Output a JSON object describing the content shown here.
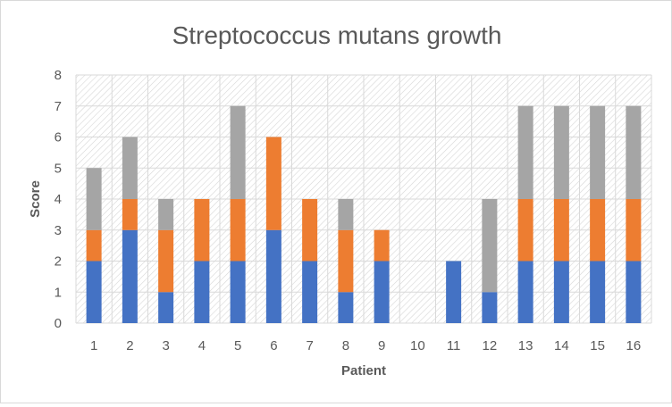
{
  "chart_data": {
    "type": "bar",
    "stacked": true,
    "title": "Streptococcus mutans growth",
    "xlabel": "Patient",
    "ylabel": "Score",
    "ylim": [
      0,
      8
    ],
    "yticks": [
      "0",
      "1",
      "2",
      "3",
      "4",
      "5",
      "6",
      "7",
      "8"
    ],
    "categories": [
      "1",
      "2",
      "3",
      "4",
      "5",
      "6",
      "7",
      "8",
      "9",
      "10",
      "11",
      "12",
      "13",
      "14",
      "15",
      "16"
    ],
    "series": [
      {
        "color": "#4472c4",
        "values": [
          2,
          3,
          1,
          2,
          2,
          3,
          2,
          1,
          2,
          0,
          2,
          1,
          2,
          2,
          2,
          2
        ]
      },
      {
        "color": "#ed7d31",
        "values": [
          1,
          1,
          2,
          2,
          2,
          3,
          2,
          2,
          1,
          0,
          0,
          0,
          2,
          2,
          2,
          2
        ]
      },
      {
        "color": "#a5a5a5",
        "values": [
          2,
          2,
          1,
          0,
          3,
          0,
          0,
          1,
          0,
          0,
          0,
          3,
          3,
          3,
          3,
          3
        ]
      }
    ],
    "grid": true,
    "legend": "none"
  }
}
